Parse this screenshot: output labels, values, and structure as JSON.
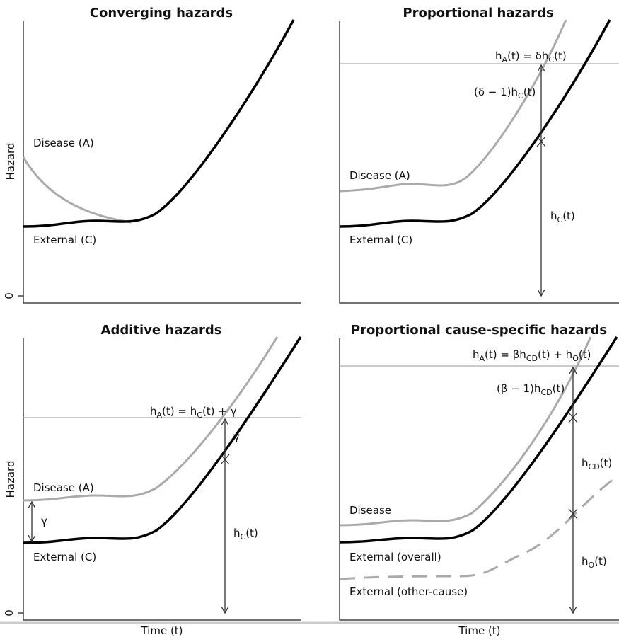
{
  "panels": [
    {
      "title": "Converging hazards",
      "y_label": "Hazard",
      "y_zero": "0",
      "labels": [
        "Disease (A)",
        "External (C)"
      ]
    },
    {
      "title": "Proportional hazards",
      "labels": [
        "Disease (A)",
        "External (C)"
      ],
      "formulas": [
        [
          "h",
          "A",
          "(t) = δh",
          "C",
          "(t)"
        ],
        [
          "(δ − 1)h",
          "C",
          "(t)"
        ],
        [
          "h",
          "C",
          "(t)"
        ]
      ]
    },
    {
      "title": "Additive hazards",
      "y_label": "Hazard",
      "y_zero": "0",
      "x_label": "Time (t)",
      "labels": [
        "Disease (A)",
        "External (C)",
        "γ",
        "γ"
      ],
      "formulas": [
        [
          "h",
          "A",
          "(t) = h",
          "C",
          "(t) + γ"
        ],
        [
          "h",
          "C",
          "(t)"
        ]
      ]
    },
    {
      "title": "Proportional cause-specific hazards",
      "x_label": "Time (t)",
      "labels": [
        "Disease",
        "External (overall)",
        "External (other-cause)"
      ],
      "formulas": [
        [
          "h",
          "A",
          "(t) = βh",
          "CD",
          "(t) + h",
          "O",
          "(t)"
        ],
        [
          "(β − 1)h",
          "CD",
          "(t)"
        ],
        [
          "h",
          "CD",
          "(t)"
        ],
        [
          "h",
          "O",
          "(t)"
        ]
      ]
    }
  ]
}
